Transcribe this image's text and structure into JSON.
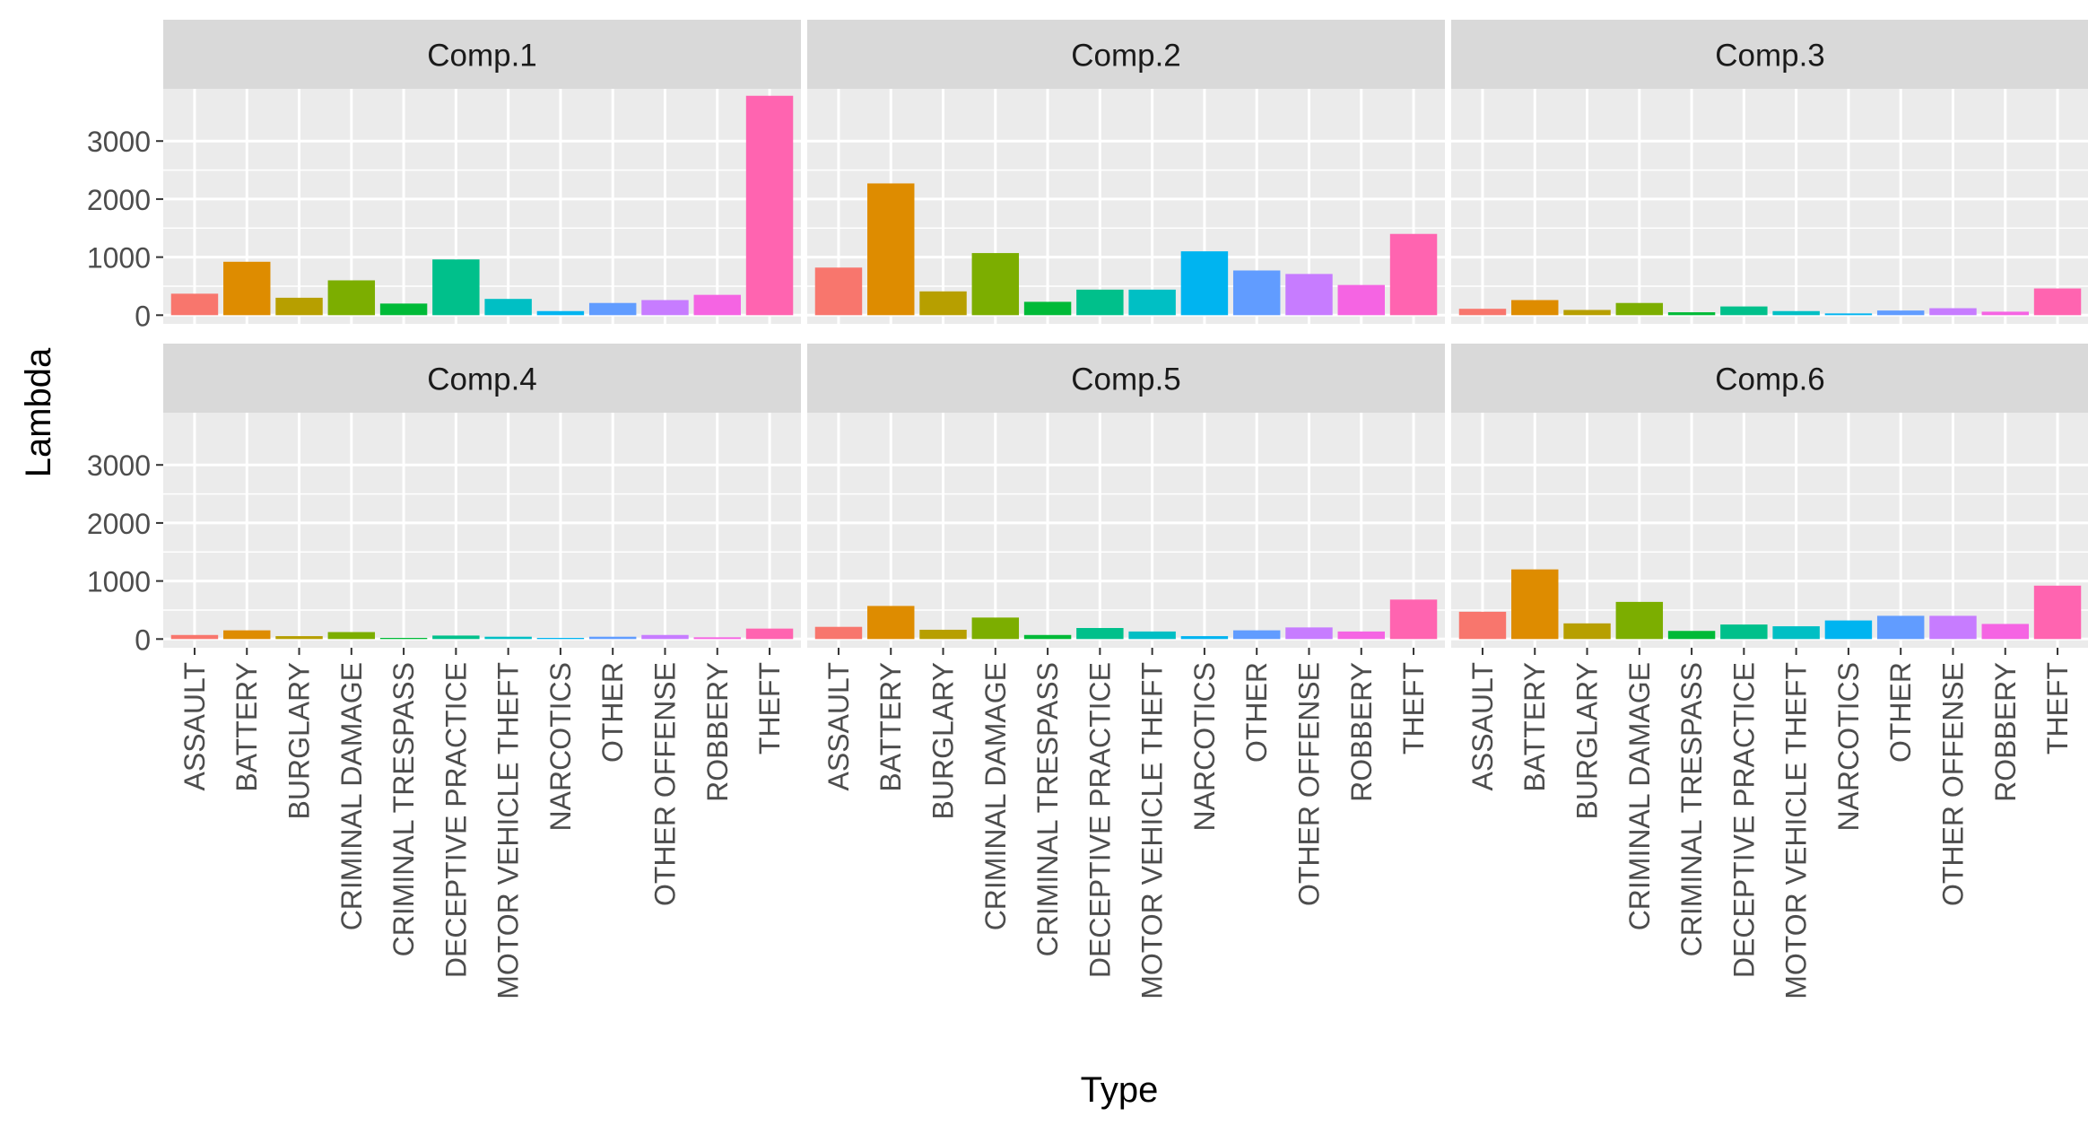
{
  "chart_data": {
    "type": "bar",
    "faceted": true,
    "facet_layout": "3 columns x 2 rows",
    "xlabel": "Type",
    "ylabel": "Lambda",
    "ylim": [
      -150,
      3900
    ],
    "yticks": [
      0,
      1000,
      2000,
      3000
    ],
    "ytick_labels": [
      "0",
      "1000",
      "2000",
      "3000"
    ],
    "grid": true,
    "legend": "none",
    "categories": [
      "ASSAULT",
      "BATTERY",
      "BURGLARY",
      "CRIMINAL DAMAGE",
      "CRIMINAL TRESPASS",
      "DECEPTIVE PRACTICE",
      "MOTOR VEHICLE THEFT",
      "NARCOTICS",
      "OTHER",
      "OTHER OFFENSE",
      "ROBBERY",
      "THEFT"
    ],
    "category_colors": [
      "#F8766D",
      "#DE8C00",
      "#B79F00",
      "#7CAE00",
      "#00BA38",
      "#00C08B",
      "#00BFC4",
      "#00B4F0",
      "#619CFF",
      "#C77CFF",
      "#F564E3",
      "#FF64B0"
    ],
    "panels": [
      {
        "name": "Comp.1",
        "values": [
          370,
          920,
          300,
          600,
          200,
          960,
          280,
          70,
          210,
          260,
          350,
          3780
        ]
      },
      {
        "name": "Comp.2",
        "values": [
          820,
          2270,
          410,
          1070,
          230,
          440,
          440,
          1100,
          770,
          710,
          520,
          1400
        ]
      },
      {
        "name": "Comp.3",
        "values": [
          110,
          260,
          90,
          210,
          50,
          150,
          70,
          30,
          80,
          120,
          60,
          460
        ]
      },
      {
        "name": "Comp.4",
        "values": [
          70,
          150,
          50,
          120,
          20,
          60,
          40,
          20,
          40,
          70,
          30,
          180
        ]
      },
      {
        "name": "Comp.5",
        "values": [
          210,
          570,
          160,
          370,
          70,
          190,
          130,
          50,
          150,
          200,
          130,
          680
        ]
      },
      {
        "name": "Comp.6",
        "values": [
          470,
          1200,
          270,
          640,
          140,
          250,
          220,
          320,
          400,
          400,
          260,
          920
        ]
      }
    ]
  },
  "colors": {
    "panel_bg": "#EBEBEB",
    "strip_bg": "#D9D9D9",
    "grid": "#FFFFFF",
    "text": "#000000",
    "tick_text": "#4D4D4D",
    "tick_mark": "#333333"
  }
}
